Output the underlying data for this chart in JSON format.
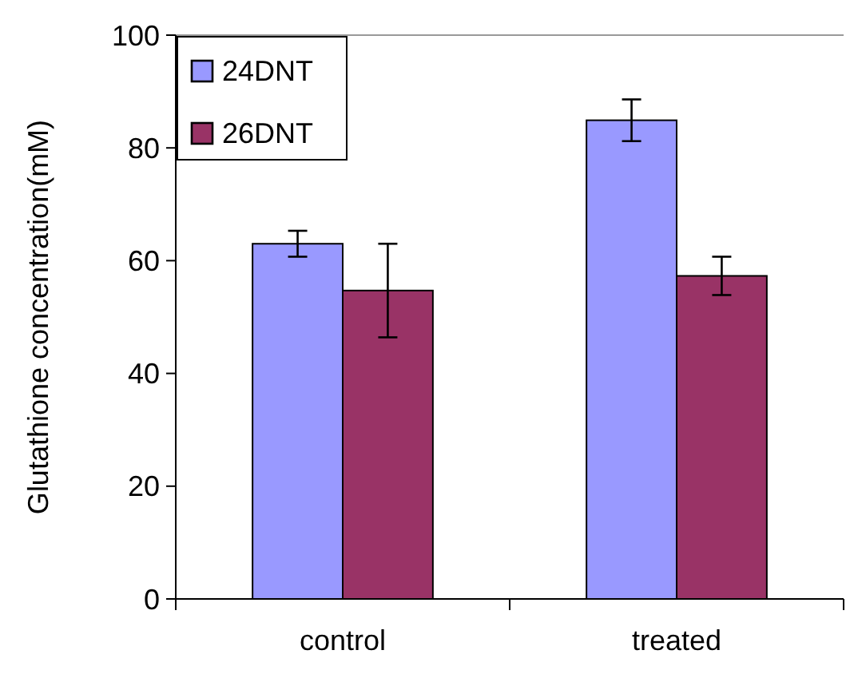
{
  "chart_data": {
    "type": "bar",
    "ylabel": "Glutathione concentration(mM)",
    "categories": [
      "control",
      "treated"
    ],
    "series": [
      {
        "name": "24DNT",
        "color": "#9999ff",
        "values": [
          63,
          84.9
        ],
        "errors": [
          2.3,
          3.7
        ]
      },
      {
        "name": "26DNT",
        "color": "#993366",
        "values": [
          54.7,
          57.3
        ],
        "errors": [
          8.3,
          3.4
        ]
      }
    ],
    "ylim": [
      0,
      100
    ],
    "yticks": [
      0,
      20,
      40,
      60,
      80,
      100
    ],
    "grid": false,
    "legend": "top left"
  }
}
